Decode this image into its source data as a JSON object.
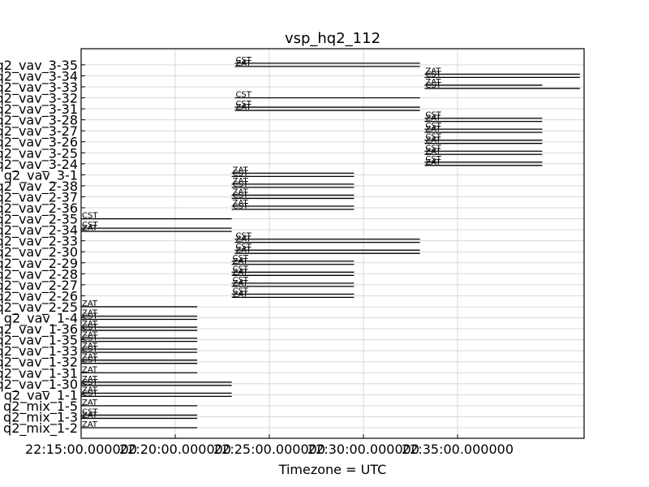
{
  "chart_data": {
    "type": "timeline",
    "title": "vsp_hq2_112",
    "xlabel": "Timezone = UTC",
    "ylabel": "",
    "grid": true,
    "x_ticks": [
      {
        "t": 15,
        "label": "22:15:00.000000"
      },
      {
        "t": 20,
        "label": "22:20:00.000000"
      },
      {
        "t": 25,
        "label": "22:25:00.000000"
      },
      {
        "t": 30,
        "label": "22:30:00.000000"
      },
      {
        "t": 35,
        "label": "22:35:00.000000"
      }
    ],
    "x_range": [
      "22:15:00",
      "22:41:30"
    ],
    "rows": [
      {
        "label": "q2_mix_1-2",
        "segments": [
          {
            "start": "22:15:00",
            "end": "22:21:10",
            "series": "ZAT"
          }
        ]
      },
      {
        "label": "q2_mix_1-3",
        "segments": [
          {
            "start": "22:15:00",
            "end": "22:21:10",
            "series": "CST"
          },
          {
            "start": "22:15:00",
            "end": "22:21:10",
            "series": "ZAT"
          }
        ]
      },
      {
        "label": "q2_mix_1-5",
        "segments": [
          {
            "start": "22:15:00",
            "end": "22:21:10",
            "series": "ZAT"
          }
        ]
      },
      {
        "label": "q2_vav_1-1",
        "segments": [
          {
            "start": "22:15:00",
            "end": "22:23:00",
            "series": "ZAT"
          },
          {
            "start": "22:15:00",
            "end": "22:23:00",
            "series": "CST"
          }
        ]
      },
      {
        "label": "q2_vav_1-30",
        "segments": [
          {
            "start": "22:15:00",
            "end": "22:23:00",
            "series": "ZAT"
          },
          {
            "start": "22:15:00",
            "end": "22:23:00",
            "series": "CST"
          }
        ]
      },
      {
        "label": "q2_vav_1-31",
        "segments": [
          {
            "start": "22:15:00",
            "end": "22:21:10",
            "series": "ZAT"
          }
        ]
      },
      {
        "label": "q2_vav_1-32",
        "segments": [
          {
            "start": "22:15:00",
            "end": "22:21:10",
            "series": "ZAT"
          },
          {
            "start": "22:15:00",
            "end": "22:21:10",
            "series": "CST"
          }
        ]
      },
      {
        "label": "q2_vav_1-33",
        "segments": [
          {
            "start": "22:15:00",
            "end": "22:21:10",
            "series": "ZAT"
          },
          {
            "start": "22:15:00",
            "end": "22:21:10",
            "series": "CST"
          }
        ]
      },
      {
        "label": "q2_vav_1-35",
        "segments": [
          {
            "start": "22:15:00",
            "end": "22:21:10",
            "series": "ZAT"
          },
          {
            "start": "22:15:00",
            "end": "22:21:10",
            "series": "CST"
          }
        ]
      },
      {
        "label": "q2_vav_1-36",
        "segments": [
          {
            "start": "22:15:00",
            "end": "22:21:10",
            "series": "ZAT"
          },
          {
            "start": "22:15:00",
            "end": "22:21:10",
            "series": "CST"
          }
        ]
      },
      {
        "label": "q2_vav_1-4",
        "segments": [
          {
            "start": "22:15:00",
            "end": "22:21:10",
            "series": "ZAT"
          },
          {
            "start": "22:15:00",
            "end": "22:21:10",
            "series": "CST"
          }
        ]
      },
      {
        "label": "q2_vav_2-25",
        "segments": [
          {
            "start": "22:15:00",
            "end": "22:21:10",
            "series": "ZAT"
          }
        ]
      },
      {
        "label": "q2_vav_2-26",
        "segments": [
          {
            "start": "22:23:00",
            "end": "22:29:30",
            "series": "CST"
          },
          {
            "start": "22:23:00",
            "end": "22:29:30",
            "series": "ZAT"
          }
        ]
      },
      {
        "label": "q2_vav_2-27",
        "segments": [
          {
            "start": "22:23:00",
            "end": "22:29:30",
            "series": "CST"
          },
          {
            "start": "22:23:00",
            "end": "22:29:30",
            "series": "ZAT"
          }
        ]
      },
      {
        "label": "q2_vav_2-28",
        "segments": [
          {
            "start": "22:23:00",
            "end": "22:29:30",
            "series": "CST"
          },
          {
            "start": "22:23:00",
            "end": "22:29:30",
            "series": "ZAT"
          }
        ]
      },
      {
        "label": "q2_vav_2-29",
        "segments": [
          {
            "start": "22:23:00",
            "end": "22:29:30",
            "series": "CST"
          },
          {
            "start": "22:23:00",
            "end": "22:29:30",
            "series": "ZAT"
          }
        ]
      },
      {
        "label": "q2_vav_2-30",
        "segments": [
          {
            "start": "22:23:10",
            "end": "22:33:00",
            "series": "CST"
          },
          {
            "start": "22:23:10",
            "end": "22:33:00",
            "series": "ZAT"
          }
        ]
      },
      {
        "label": "q2_vav_2-33",
        "segments": [
          {
            "start": "22:23:10",
            "end": "22:33:00",
            "series": "CST"
          },
          {
            "start": "22:23:10",
            "end": "22:33:00",
            "series": "ZAT"
          }
        ]
      },
      {
        "label": "q2_vav_2-34",
        "segments": [
          {
            "start": "22:15:00",
            "end": "22:23:00",
            "series": "CST"
          },
          {
            "start": "22:15:00",
            "end": "22:23:00",
            "series": "ZAT"
          }
        ]
      },
      {
        "label": "q2_vav_2-35",
        "segments": [
          {
            "start": "22:15:00",
            "end": "22:23:00",
            "series": "CST"
          }
        ]
      },
      {
        "label": "q2_vav_2-36",
        "segments": [
          {
            "start": "22:23:00",
            "end": "22:29:30",
            "series": "ZAT"
          },
          {
            "start": "22:23:00",
            "end": "22:29:30",
            "series": "CST"
          }
        ]
      },
      {
        "label": "q2_vav_2-37",
        "segments": [
          {
            "start": "22:23:00",
            "end": "22:29:30",
            "series": "ZAT"
          },
          {
            "start": "22:23:00",
            "end": "22:29:30",
            "series": "CST"
          }
        ]
      },
      {
        "label": "q2_vav_2-38",
        "segments": [
          {
            "start": "22:23:00",
            "end": "22:29:30",
            "series": "ZAT"
          },
          {
            "start": "22:23:00",
            "end": "22:29:30",
            "series": "CST"
          }
        ]
      },
      {
        "label": "q2_vav_3-1",
        "segments": [
          {
            "start": "22:23:00",
            "end": "22:29:30",
            "series": "ZAT"
          },
          {
            "start": "22:23:00",
            "end": "22:29:30",
            "series": "CST"
          }
        ]
      },
      {
        "label": "q2_vav_3-24",
        "segments": [
          {
            "start": "22:33:15",
            "end": "22:39:30",
            "series": "CST"
          },
          {
            "start": "22:33:15",
            "end": "22:39:30",
            "series": "ZAT"
          }
        ]
      },
      {
        "label": "q2_vav_3-25",
        "segments": [
          {
            "start": "22:33:15",
            "end": "22:39:30",
            "series": "CST"
          },
          {
            "start": "22:33:15",
            "end": "22:39:30",
            "series": "ZAT"
          }
        ]
      },
      {
        "label": "q2_vav_3-26",
        "segments": [
          {
            "start": "22:33:15",
            "end": "22:39:30",
            "series": "CST"
          },
          {
            "start": "22:33:15",
            "end": "22:39:30",
            "series": "ZAT"
          }
        ]
      },
      {
        "label": "q2_vav_3-27",
        "segments": [
          {
            "start": "22:33:15",
            "end": "22:39:30",
            "series": "CST"
          },
          {
            "start": "22:33:15",
            "end": "22:39:30",
            "series": "ZAT"
          }
        ]
      },
      {
        "label": "q2_vav_3-28",
        "segments": [
          {
            "start": "22:33:15",
            "end": "22:39:30",
            "series": "CST"
          },
          {
            "start": "22:33:15",
            "end": "22:39:30",
            "series": "ZAT"
          }
        ]
      },
      {
        "label": "q2_vav_3-31",
        "segments": [
          {
            "start": "22:23:10",
            "end": "22:33:00",
            "series": "CST"
          },
          {
            "start": "22:23:10",
            "end": "22:33:00",
            "series": "ZAT"
          }
        ]
      },
      {
        "label": "q2_vav_3-32",
        "segments": [
          {
            "start": "22:23:10",
            "end": "22:33:00",
            "series": "CST"
          }
        ]
      },
      {
        "label": "q2_vav_3-33",
        "segments": [
          {
            "start": "22:33:15",
            "end": "22:39:30",
            "series": "ZAT"
          },
          {
            "start": "22:33:15",
            "end": "22:41:30",
            "series": "CST"
          }
        ]
      },
      {
        "label": "q2_vav_3-34",
        "segments": [
          {
            "start": "22:33:15",
            "end": "22:41:30",
            "series": "ZAT"
          },
          {
            "start": "22:33:15",
            "end": "22:41:30",
            "series": "CST"
          }
        ]
      },
      {
        "label": "q2_vav_3-35",
        "segments": [
          {
            "start": "22:23:10",
            "end": "22:33:00",
            "series": "CST"
          },
          {
            "start": "22:23:10",
            "end": "22:33:00",
            "series": "ZAT"
          }
        ]
      }
    ]
  }
}
